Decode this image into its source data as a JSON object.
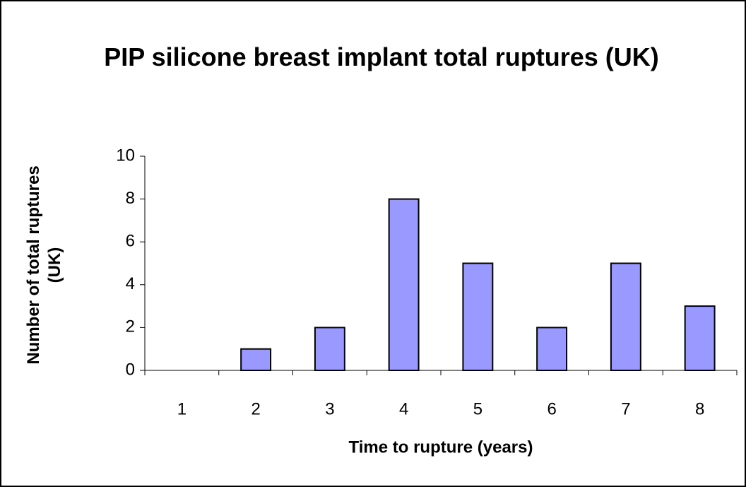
{
  "chart_data": {
    "type": "bar",
    "title": "PIP silicone breast implant total ruptures (UK)",
    "xlabel": "Time to rupture (years)",
    "ylabel": "Number of total ruptures (UK)",
    "categories": [
      "1",
      "2",
      "3",
      "4",
      "5",
      "6",
      "7",
      "8"
    ],
    "values": [
      0,
      1,
      2,
      8,
      5,
      2,
      5,
      3
    ],
    "color": "#9999ff",
    "ylim": [
      0,
      10
    ],
    "yticks": [
      0,
      2,
      4,
      6,
      8,
      10
    ],
    "grid": false
  }
}
